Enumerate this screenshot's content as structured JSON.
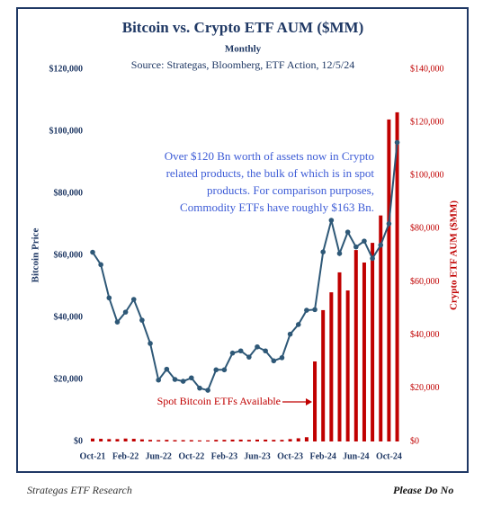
{
  "chart_data": {
    "type": "bar-line",
    "title": "Bitcoin vs. Crypto ETF AUM ($MM)",
    "subtitle": "Monthly",
    "source": "Source: Strategas, Bloomberg, ETF Action, 12/5/24",
    "annotation": [
      "Over $120 Bn worth of assets now in Crypto",
      "related products, the bulk of which is in spot",
      "products. For comparison purposes,",
      "Commodity ETFs have roughly $163 Bn."
    ],
    "arrow_label": "Spot Bitcoin ETFs Available",
    "y_label": "Bitcoin Price",
    "y2_label": "Crypto ETF AUM ($MM)",
    "categories": [
      "Oct-21",
      null,
      null,
      null,
      "Feb-22",
      null,
      null,
      null,
      "Jun-22",
      null,
      null,
      null,
      "Oct-22",
      null,
      null,
      null,
      "Feb-23",
      null,
      null,
      null,
      "Jun-23",
      null,
      null,
      null,
      "Oct-23",
      null,
      null,
      null,
      "Feb-24",
      null,
      null,
      null,
      "Jun-24",
      null,
      null,
      null,
      "Oct-24",
      null
    ],
    "series": [
      {
        "name": "Crypto ETF AUM ($MM)",
        "type": "bar",
        "axis": "y2",
        "color": "#c00000",
        "values": [
          1100,
          1000,
          900,
          900,
          1100,
          1000,
          800,
          600,
          500,
          600,
          500,
          500,
          500,
          400,
          400,
          600,
          600,
          700,
          700,
          600,
          700,
          700,
          600,
          600,
          900,
          1200,
          1600,
          30100,
          49400,
          56100,
          63600,
          56800,
          72000,
          67300,
          74700,
          85000,
          121100,
          123800
        ]
      },
      {
        "name": "Bitcoin Price",
        "type": "line",
        "axis": "y",
        "color": "#2e5877",
        "values": [
          61000,
          57000,
          46300,
          38500,
          41700,
          45800,
          39100,
          31600,
          19800,
          23300,
          20000,
          19400,
          20500,
          17200,
          16500,
          23100,
          23100,
          28500,
          29200,
          27200,
          30500,
          29200,
          26000,
          27000,
          34600,
          37700,
          42300,
          42500,
          61100,
          71300,
          60600,
          67500,
          62700,
          64600,
          59000,
          63300,
          70200,
          96400
        ]
      }
    ],
    "ylim": [
      0,
      120000
    ],
    "yticks": [
      {
        "value": 0,
        "label": "$0"
      },
      {
        "value": 20000,
        "label": "$20,000"
      },
      {
        "value": 40000,
        "label": "$40,000"
      },
      {
        "value": 60000,
        "label": "$60,000"
      },
      {
        "value": 80000,
        "label": "$80,000"
      },
      {
        "value": 100000,
        "label": "$100,000"
      },
      {
        "value": 120000,
        "label": "$120,000"
      }
    ],
    "y2lim": [
      0,
      140000
    ],
    "y2ticks": [
      {
        "value": 0,
        "label": "$0"
      },
      {
        "value": 20000,
        "label": "$20,000"
      },
      {
        "value": 40000,
        "label": "$40,000"
      },
      {
        "value": 60000,
        "label": "$60,000"
      },
      {
        "value": 80000,
        "label": "$80,000"
      },
      {
        "value": 100000,
        "label": "$100,000"
      },
      {
        "value": 120000,
        "label": "$120,000"
      },
      {
        "value": 140000,
        "label": "$140,000"
      }
    ]
  },
  "footer": {
    "left": "Strategas ETF Research",
    "right": "Please Do No"
  }
}
